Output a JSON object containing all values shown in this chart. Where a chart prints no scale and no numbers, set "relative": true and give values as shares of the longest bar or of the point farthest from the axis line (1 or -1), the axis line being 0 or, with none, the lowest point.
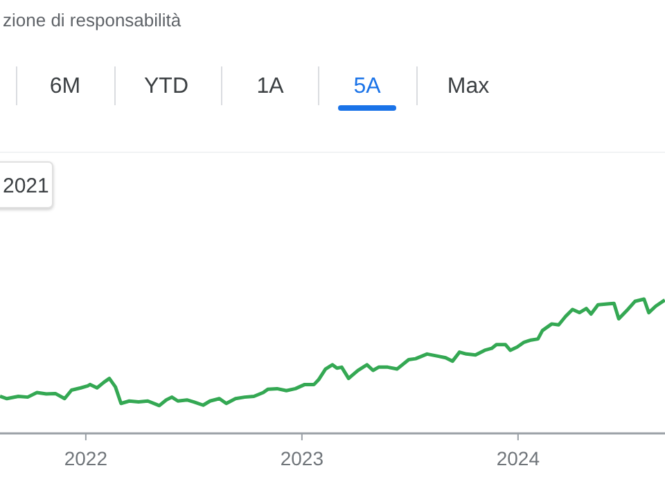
{
  "chart_data": {
    "type": "line",
    "relative": true,
    "annotations": [
      "zione di responsabilità",
      "6M",
      "YTD",
      "1A",
      "5A",
      "Max",
      "2021"
    ],
    "xlim": [
      2021.603,
      2024.68
    ],
    "xticks": [
      2022,
      2023,
      2024
    ],
    "series": [
      {
        "color": "#34a853",
        "x": [
          2021.603,
          2021.635,
          2021.688,
          2021.731,
          2021.774,
          2021.817,
          2021.859,
          2021.902,
          2021.934,
          2021.977,
          2022.009,
          2022.02,
          2022.052,
          2022.084,
          2022.109,
          2022.137,
          2022.163,
          2022.201,
          2022.244,
          2022.287,
          2022.34,
          2022.372,
          2022.398,
          2022.426,
          2022.468,
          2022.5,
          2022.543,
          2022.575,
          2022.618,
          2022.65,
          2022.693,
          2022.735,
          2022.778,
          2022.821,
          2022.842,
          2022.885,
          2022.928,
          2022.97,
          2023.013,
          2023.056,
          2023.077,
          2023.109,
          2023.141,
          2023.162,
          2023.184,
          2023.216,
          2023.259,
          2023.301,
          2023.329,
          2023.355,
          2023.397,
          2023.44,
          2023.494,
          2023.526,
          2023.579,
          2023.632,
          2023.665,
          2023.697,
          2023.729,
          2023.761,
          2023.803,
          2023.846,
          2023.878,
          2023.9,
          2023.942,
          2023.964,
          2023.996,
          2024.028,
          2024.06,
          2024.092,
          2024.113,
          2024.156,
          2024.188,
          2024.22,
          2024.252,
          2024.284,
          2024.316,
          2024.338,
          2024.37,
          2024.423,
          2024.444,
          2024.466,
          2024.508,
          2024.541,
          2024.583,
          2024.605,
          2024.637,
          2024.679
        ],
        "values": [
          0.276,
          0.259,
          0.276,
          0.27,
          0.304,
          0.294,
          0.297,
          0.259,
          0.322,
          0.339,
          0.354,
          0.364,
          0.339,
          0.381,
          0.409,
          0.346,
          0.223,
          0.241,
          0.234,
          0.241,
          0.207,
          0.249,
          0.27,
          0.241,
          0.249,
          0.234,
          0.21,
          0.241,
          0.259,
          0.223,
          0.259,
          0.27,
          0.276,
          0.304,
          0.328,
          0.333,
          0.318,
          0.333,
          0.364,
          0.364,
          0.399,
          0.479,
          0.511,
          0.486,
          0.493,
          0.409,
          0.469,
          0.511,
          0.469,
          0.493,
          0.493,
          0.479,
          0.549,
          0.556,
          0.591,
          0.574,
          0.563,
          0.538,
          0.605,
          0.591,
          0.584,
          0.619,
          0.633,
          0.661,
          0.661,
          0.619,
          0.643,
          0.679,
          0.695,
          0.703,
          0.766,
          0.815,
          0.808,
          0.871,
          0.923,
          0.899,
          0.93,
          0.889,
          0.958,
          0.965,
          0.968,
          0.853,
          0.923,
          0.983,
          1,
          0.899,
          0.947,
          0.993
        ]
      }
    ]
  }
}
